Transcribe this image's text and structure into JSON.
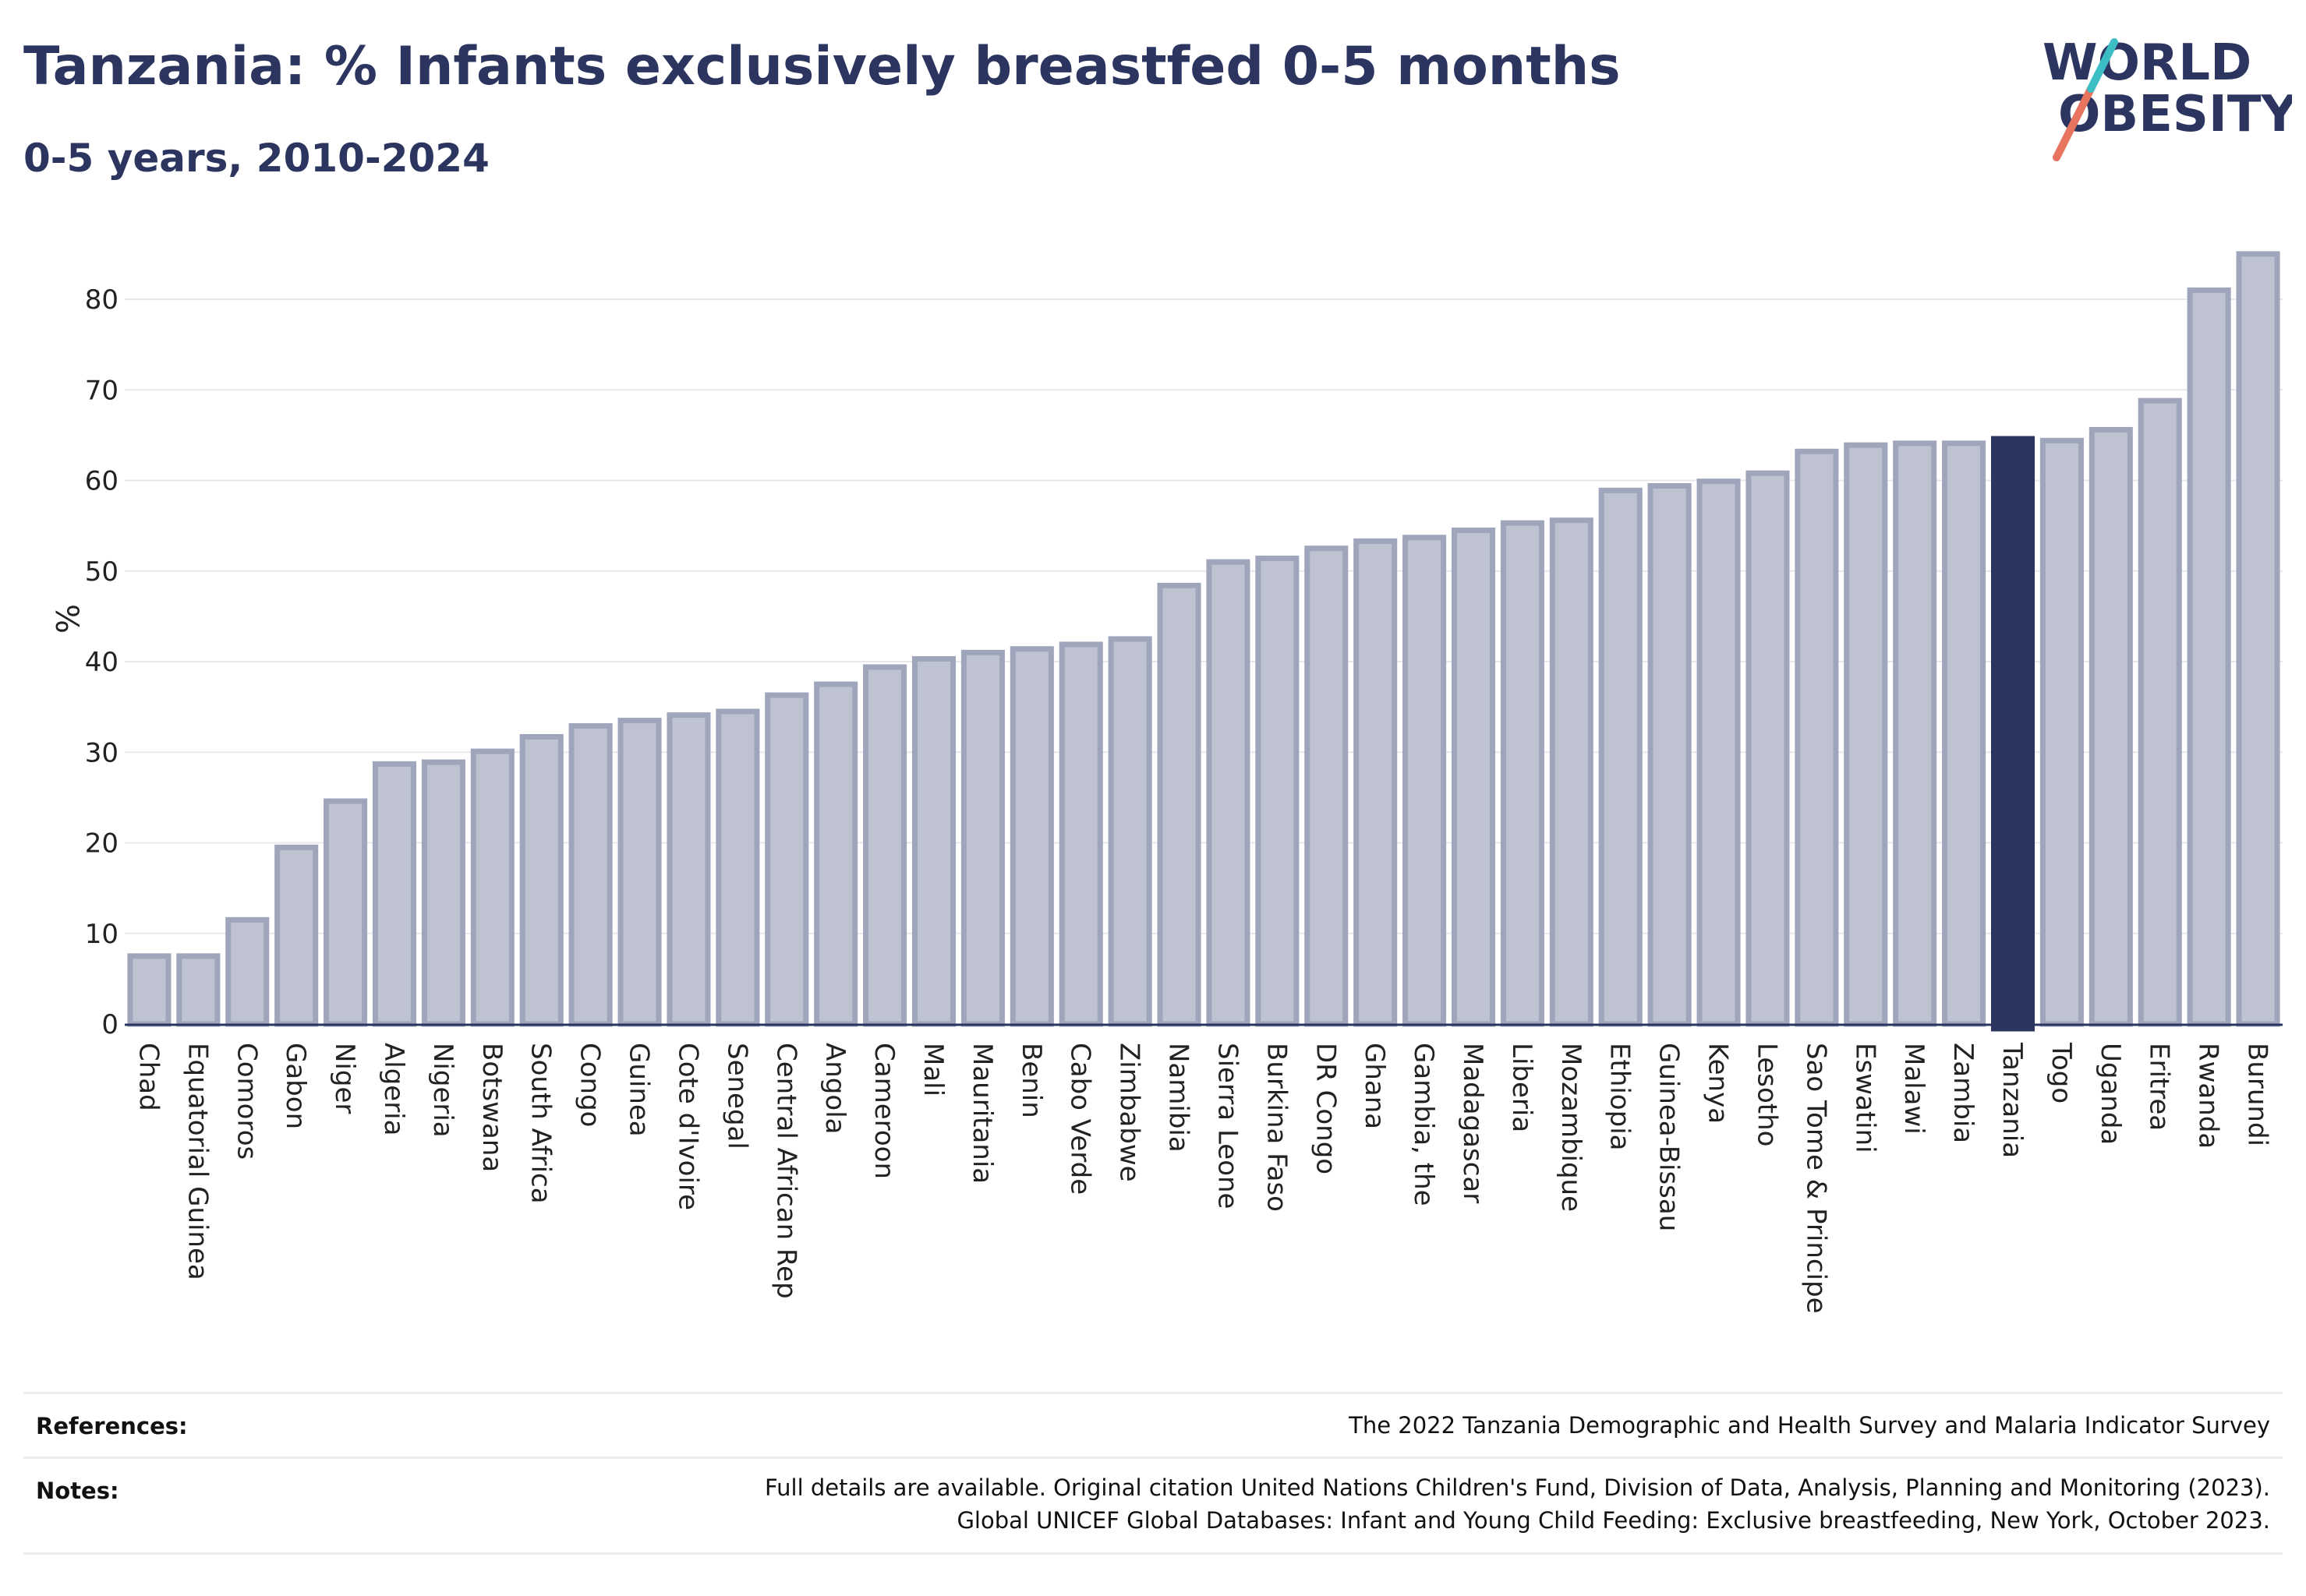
{
  "header": {
    "title": "Tanzania: % Infants exclusively breastfed 0-5 months",
    "subtitle": "0-5 years, 2010-2024"
  },
  "logo": {
    "line1": "WORLD",
    "line2": "OBESITY",
    "colors": {
      "text": "#2b3560",
      "slash_coral": "#e8735f",
      "slash_teal": "#3dbdc4"
    }
  },
  "colors": {
    "bar": "#bfc3d1",
    "bar_outline": "#9fa5bb",
    "highlight": "#2b3560"
  },
  "chart_data": {
    "type": "bar",
    "title": "Tanzania: % Infants exclusively breastfed 0-5 months",
    "subtitle": "0-5 years, 2010-2024",
    "xlabel": "",
    "ylabel": "%",
    "ylim": [
      0,
      85
    ],
    "yticks": [
      0,
      10,
      20,
      30,
      40,
      50,
      60,
      70,
      80
    ],
    "grid": true,
    "highlight": "Tanzania",
    "categories": [
      "Chad",
      "Equatorial Guinea",
      "Comoros",
      "Gabon",
      "Niger",
      "Algeria",
      "Nigeria",
      "Botswana",
      "South Africa",
      "Congo",
      "Guinea",
      "Cote d'Ivoire",
      "Senegal",
      "Central African Rep",
      "Angola",
      "Cameroon",
      "Mali",
      "Mauritania",
      "Benin",
      "Cabo Verde",
      "Zimbabwe",
      "Namibia",
      "Sierra Leone",
      "Burkina Faso",
      "DR Congo",
      "Ghana",
      "Gambia, the",
      "Madagascar",
      "Liberia",
      "Mozambique",
      "Ethiopia",
      "Guinea-Bissau",
      "Kenya",
      "Lesotho",
      "Sao Tome & Principe",
      "Eswatini",
      "Malawi",
      "Zambia",
      "Tanzania",
      "Togo",
      "Uganda",
      "Eritrea",
      "Rwanda",
      "Burundi"
    ],
    "values": [
      7.5,
      7.5,
      11.5,
      19.5,
      24.6,
      28.7,
      28.9,
      30.1,
      31.7,
      32.9,
      33.5,
      34.1,
      34.5,
      36.3,
      37.5,
      39.4,
      40.3,
      41.0,
      41.4,
      41.9,
      42.5,
      48.4,
      51.0,
      51.4,
      52.5,
      53.3,
      53.7,
      54.5,
      55.3,
      55.6,
      58.9,
      59.4,
      59.9,
      60.8,
      63.2,
      63.9,
      64.1,
      64.1,
      64.6,
      64.4,
      65.6,
      68.8,
      81.0,
      85.0
    ]
  },
  "footer": {
    "references_label": "References:",
    "references_text": "The 2022 Tanzania Demographic and Health Survey and Malaria Indicator Survey",
    "notes_label": "Notes:",
    "notes_line1": "Full details are available. Original citation United Nations Children's Fund, Division of Data, Analysis, Planning and Monitoring (2023).",
    "notes_line2": "Global UNICEF Global Databases: Infant and Young Child Feeding: Exclusive breastfeeding, New York, October 2023."
  }
}
